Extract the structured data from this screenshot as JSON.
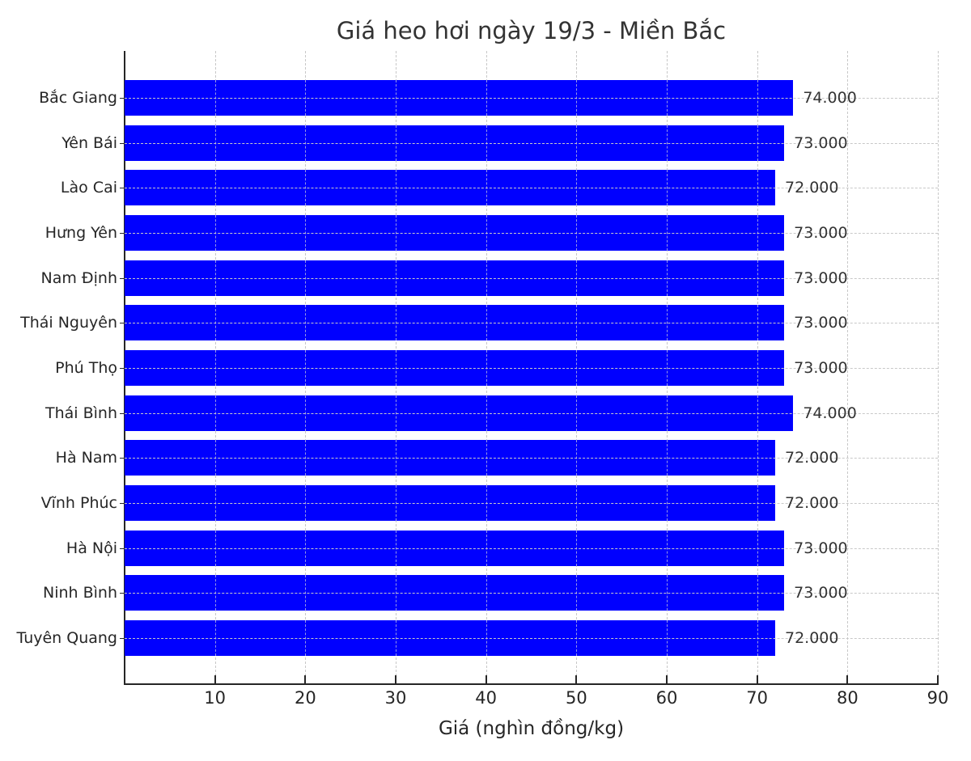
{
  "chart_data": {
    "type": "bar",
    "orientation": "horizontal",
    "title": "Giá heo hơi ngày 19/3 - Miền Bắc",
    "xlabel": "Giá (nghìn đồng/kg)",
    "ylabel": "",
    "xlim": [
      0,
      90
    ],
    "xticks": [
      10,
      20,
      30,
      40,
      50,
      60,
      70,
      80,
      90
    ],
    "grid": true,
    "grid_style": "dashed",
    "bar_color": "#0000ff",
    "categories": [
      "Bắc Giang",
      "Yên Bái",
      "Lào Cai",
      "Hưng Yên",
      "Nam Định",
      "Thái Nguyên",
      "Phú Thọ",
      "Thái Bình",
      "Hà Nam",
      "Vĩnh Phúc",
      "Hà Nội",
      "Ninh Bình",
      "Tuyên Quang"
    ],
    "values": [
      74,
      73,
      72,
      73,
      73,
      73,
      73,
      74,
      72,
      72,
      73,
      73,
      72
    ],
    "value_labels": [
      "74.000",
      "73.000",
      "72.000",
      "73.000",
      "73.000",
      "73.000",
      "73.000",
      "74.000",
      "72.000",
      "72.000",
      "73.000",
      "73.000",
      "72.000"
    ]
  },
  "xtick_labels": [
    "10",
    "20",
    "30",
    "40",
    "50",
    "60",
    "70",
    "80",
    "90"
  ]
}
